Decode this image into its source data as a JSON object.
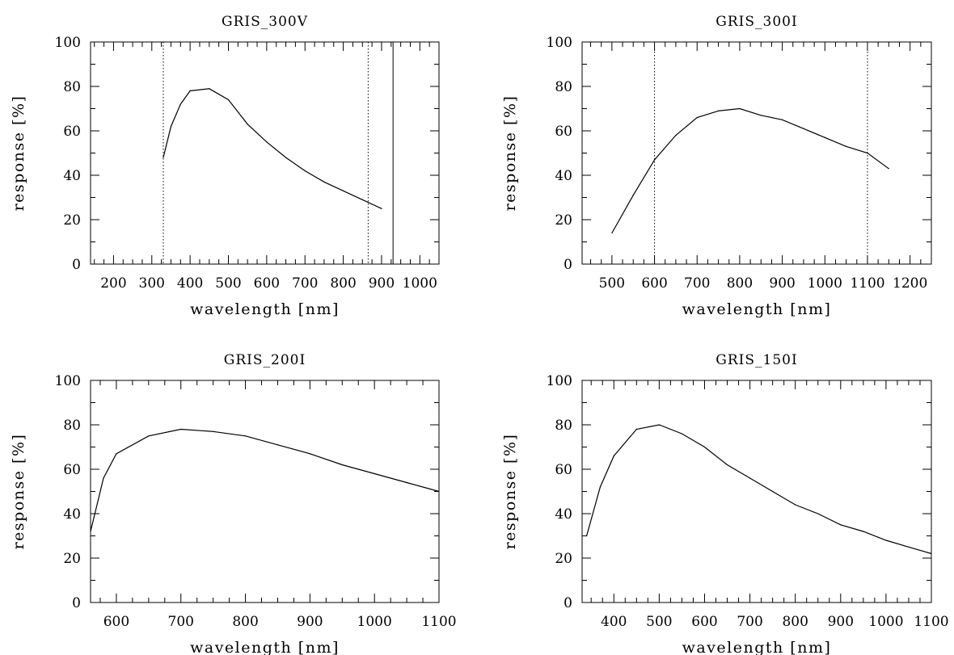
{
  "chart_data": [
    {
      "type": "line",
      "title": "GRIS_300V",
      "xlabel": "wavelength [nm]",
      "ylabel": "response [%]",
      "xlim": [
        140,
        1050
      ],
      "ylim": [
        0,
        100
      ],
      "xticks": [
        200,
        300,
        400,
        500,
        600,
        700,
        800,
        900,
        1000
      ],
      "xminor": 25,
      "yticks": [
        0,
        20,
        40,
        60,
        80,
        100
      ],
      "yminor": 10,
      "series": [
        {
          "x": [
            330,
            350,
            375,
            400,
            450,
            500,
            550,
            600,
            650,
            700,
            750,
            800,
            850,
            900
          ],
          "values": [
            48,
            62,
            72,
            78,
            79,
            74,
            63,
            55,
            48,
            42,
            37,
            33,
            29,
            25
          ]
        }
      ],
      "vlines": [
        {
          "x": 330,
          "style": "dotted"
        },
        {
          "x": 865,
          "style": "dotted"
        },
        {
          "x": 930,
          "style": "solid"
        }
      ]
    },
    {
      "type": "line",
      "title": "GRIS_300I",
      "xlabel": "wavelength [nm]",
      "ylabel": "response [%]",
      "xlim": [
        430,
        1250
      ],
      "ylim": [
        0,
        100
      ],
      "xticks": [
        500,
        600,
        700,
        800,
        900,
        1000,
        1100,
        1200
      ],
      "xminor": 25,
      "yticks": [
        0,
        20,
        40,
        60,
        80,
        100
      ],
      "yminor": 10,
      "series": [
        {
          "x": [
            500,
            550,
            600,
            650,
            700,
            750,
            800,
            850,
            900,
            950,
            1000,
            1050,
            1100,
            1150
          ],
          "values": [
            14,
            31,
            47,
            58,
            66,
            69,
            70,
            67,
            65,
            61,
            57,
            53,
            50,
            43
          ]
        }
      ],
      "vlines": [
        {
          "x": 600,
          "style": "dotted"
        },
        {
          "x": 1100,
          "style": "dotted"
        }
      ]
    },
    {
      "type": "line",
      "title": "GRIS_200I",
      "xlabel": "wavelength [nm]",
      "ylabel": "response [%]",
      "xlim": [
        560,
        1100
      ],
      "ylim": [
        0,
        100
      ],
      "xticks": [
        600,
        700,
        800,
        900,
        1000,
        1100
      ],
      "xminor": 25,
      "yticks": [
        0,
        20,
        40,
        60,
        80,
        100
      ],
      "yminor": 10,
      "series": [
        {
          "x": [
            560,
            580,
            600,
            650,
            700,
            750,
            800,
            850,
            900,
            950,
            1000,
            1050,
            1100
          ],
          "values": [
            32,
            56,
            67,
            75,
            78,
            77,
            75,
            71,
            67,
            62,
            58,
            54,
            50
          ]
        }
      ],
      "vlines": []
    },
    {
      "type": "line",
      "title": "GRIS_150I",
      "xlabel": "wavelength [nm]",
      "ylabel": "response [%]",
      "xlim": [
        330,
        1100
      ],
      "ylim": [
        0,
        100
      ],
      "xticks": [
        400,
        500,
        600,
        700,
        800,
        900,
        1000,
        1100
      ],
      "xminor": 25,
      "yticks": [
        0,
        20,
        40,
        60,
        80,
        100
      ],
      "yminor": 10,
      "series": [
        {
          "x": [
            340,
            370,
            400,
            450,
            500,
            550,
            600,
            650,
            700,
            750,
            800,
            850,
            900,
            950,
            1000,
            1050,
            1100
          ],
          "values": [
            30,
            52,
            66,
            78,
            80,
            76,
            70,
            62,
            56,
            50,
            44,
            40,
            35,
            32,
            28,
            25,
            22
          ]
        }
      ],
      "vlines": []
    }
  ]
}
